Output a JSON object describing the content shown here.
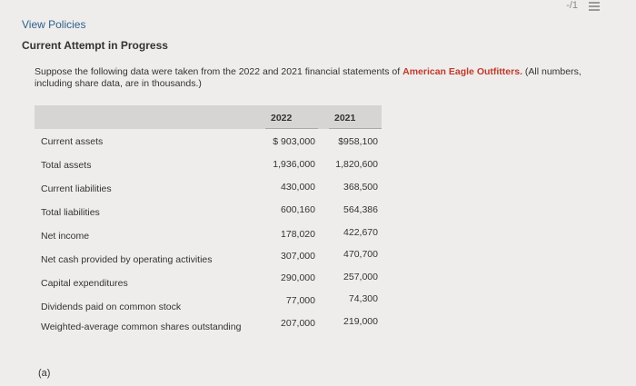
{
  "header": {
    "score": "-/1",
    "view_policies": "View Policies",
    "attempt_status": "Current Attempt in Progress"
  },
  "question": {
    "text_before": "Suppose the following data were taken from the 2022 and 2021 financial statements of ",
    "company": "American Eagle Outfitters.",
    "text_after": " (All numbers, including share data, are in thousands.)"
  },
  "table": {
    "columns": [
      "2022",
      "2021"
    ],
    "rows": [
      {
        "label": "Current assets",
        "v2022": "$ 903,000",
        "v2021": "$958,100"
      },
      {
        "label": "Total assets",
        "v2022": "1,936,000",
        "v2021": "1,820,600"
      },
      {
        "label": "Current liabilities",
        "v2022": "430,000",
        "v2021": "368,500"
      },
      {
        "label": "Total liabilities",
        "v2022": "600,160",
        "v2021": "564,386"
      },
      {
        "label": "Net income",
        "v2022": "178,020",
        "v2021": "422,670"
      },
      {
        "label": "Net cash provided by operating activities",
        "v2022": "307,000",
        "v2021": "470,700"
      },
      {
        "label": "Capital expenditures",
        "v2022": "290,000",
        "v2021": "257,000"
      },
      {
        "label": "Dividends paid on common stock",
        "v2022": "77,000",
        "v2021": "74,300"
      },
      {
        "label": "Weighted-average common shares outstanding",
        "v2022": "207,000",
        "v2021": "219,000"
      }
    ]
  },
  "part": "(a)"
}
